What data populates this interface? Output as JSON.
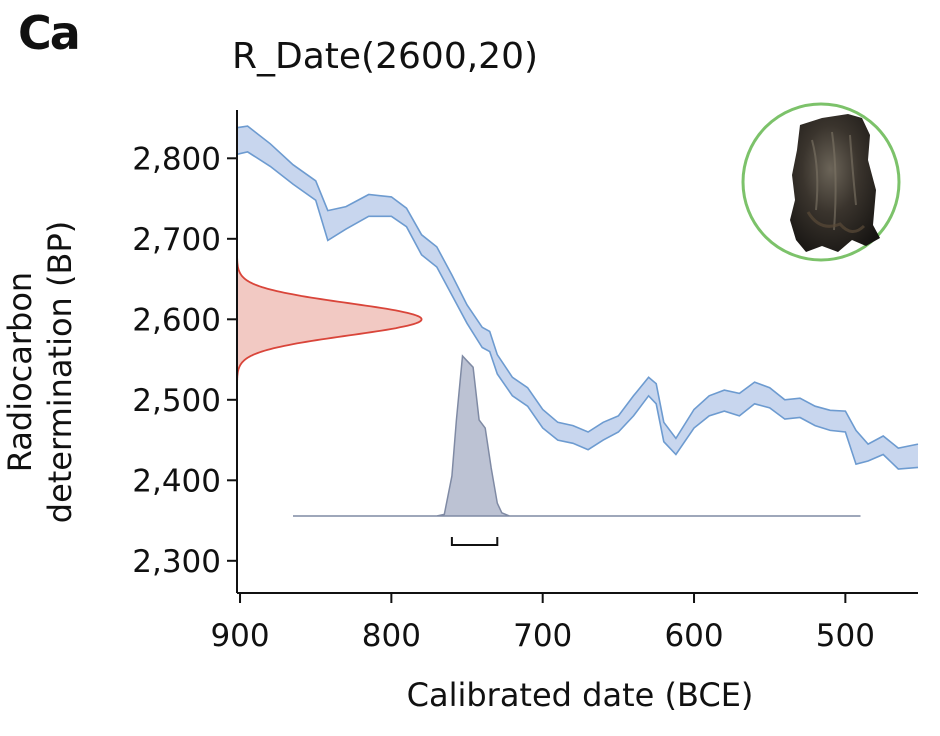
{
  "panel_label": "Ca",
  "chart_data": {
    "type": "area",
    "title": "R_Date(2600,20)",
    "xlabel": "Calibrated date (BCE)",
    "ylabel_lines": [
      "Radiocarbon",
      "determination (BP)"
    ],
    "x_ticks": [
      "900",
      "800",
      "700",
      "600",
      "500"
    ],
    "y_ticks": [
      "2,800",
      "2,700",
      "2,600",
      "2,500",
      "2,400",
      "2,300"
    ],
    "x_tick_values": [
      900,
      800,
      700,
      600,
      500
    ],
    "y_tick_values": [
      2800,
      2700,
      2600,
      2500,
      2400,
      2300
    ],
    "xlim": [
      902,
      452
    ],
    "ylim": [
      2260,
      2860
    ],
    "calibration_curve": {
      "x": [
        902,
        895,
        880,
        865,
        850,
        842,
        830,
        815,
        800,
        790,
        780,
        770,
        760,
        750,
        740,
        735,
        730,
        720,
        710,
        700,
        690,
        680,
        670,
        660,
        650,
        640,
        630,
        625,
        620,
        612,
        600,
        590,
        580,
        570,
        560,
        550,
        540,
        530,
        520,
        510,
        500,
        493,
        485,
        475,
        465,
        452
      ],
      "upper": [
        2838,
        2840,
        2818,
        2792,
        2772,
        2735,
        2740,
        2755,
        2752,
        2738,
        2705,
        2690,
        2655,
        2618,
        2590,
        2585,
        2556,
        2528,
        2515,
        2488,
        2472,
        2468,
        2460,
        2472,
        2480,
        2505,
        2528,
        2520,
        2472,
        2452,
        2488,
        2505,
        2512,
        2508,
        2522,
        2515,
        2500,
        2502,
        2492,
        2487,
        2486,
        2462,
        2445,
        2455,
        2440,
        2445
      ],
      "lower": [
        2805,
        2808,
        2790,
        2768,
        2748,
        2698,
        2712,
        2728,
        2728,
        2715,
        2680,
        2665,
        2630,
        2595,
        2565,
        2560,
        2532,
        2505,
        2492,
        2465,
        2450,
        2446,
        2438,
        2450,
        2460,
        2480,
        2505,
        2495,
        2448,
        2432,
        2465,
        2480,
        2486,
        2480,
        2495,
        2490,
        2476,
        2478,
        2468,
        2462,
        2460,
        2420,
        2424,
        2432,
        2414,
        2416
      ]
    },
    "radiocarbon_determination": {
      "mean": 2600,
      "error": 20
    },
    "calibrated_distribution": {
      "x": [
        865,
        770,
        765,
        760,
        757,
        753,
        750,
        746,
        742,
        738,
        734,
        730,
        727,
        722,
        490
      ],
      "density": [
        0,
        0,
        0.01,
        0.25,
        0.6,
        1.0,
        0.97,
        0.93,
        0.6,
        0.55,
        0.3,
        0.08,
        0.02,
        0,
        0
      ]
    },
    "range_bracket": [
      760,
      730
    ],
    "colors": {
      "curve_fill": "#c8d6ee",
      "curve_line": "#6d9bd0",
      "determination_fill": "#f2c9c3",
      "determination_line": "#d9453a",
      "posterior_fill": "#bcc2d3",
      "posterior_line": "#7f8aa4",
      "inset_ring": "#7cc26a"
    }
  },
  "inset": {
    "icon": "charcoal-sample-photo"
  }
}
